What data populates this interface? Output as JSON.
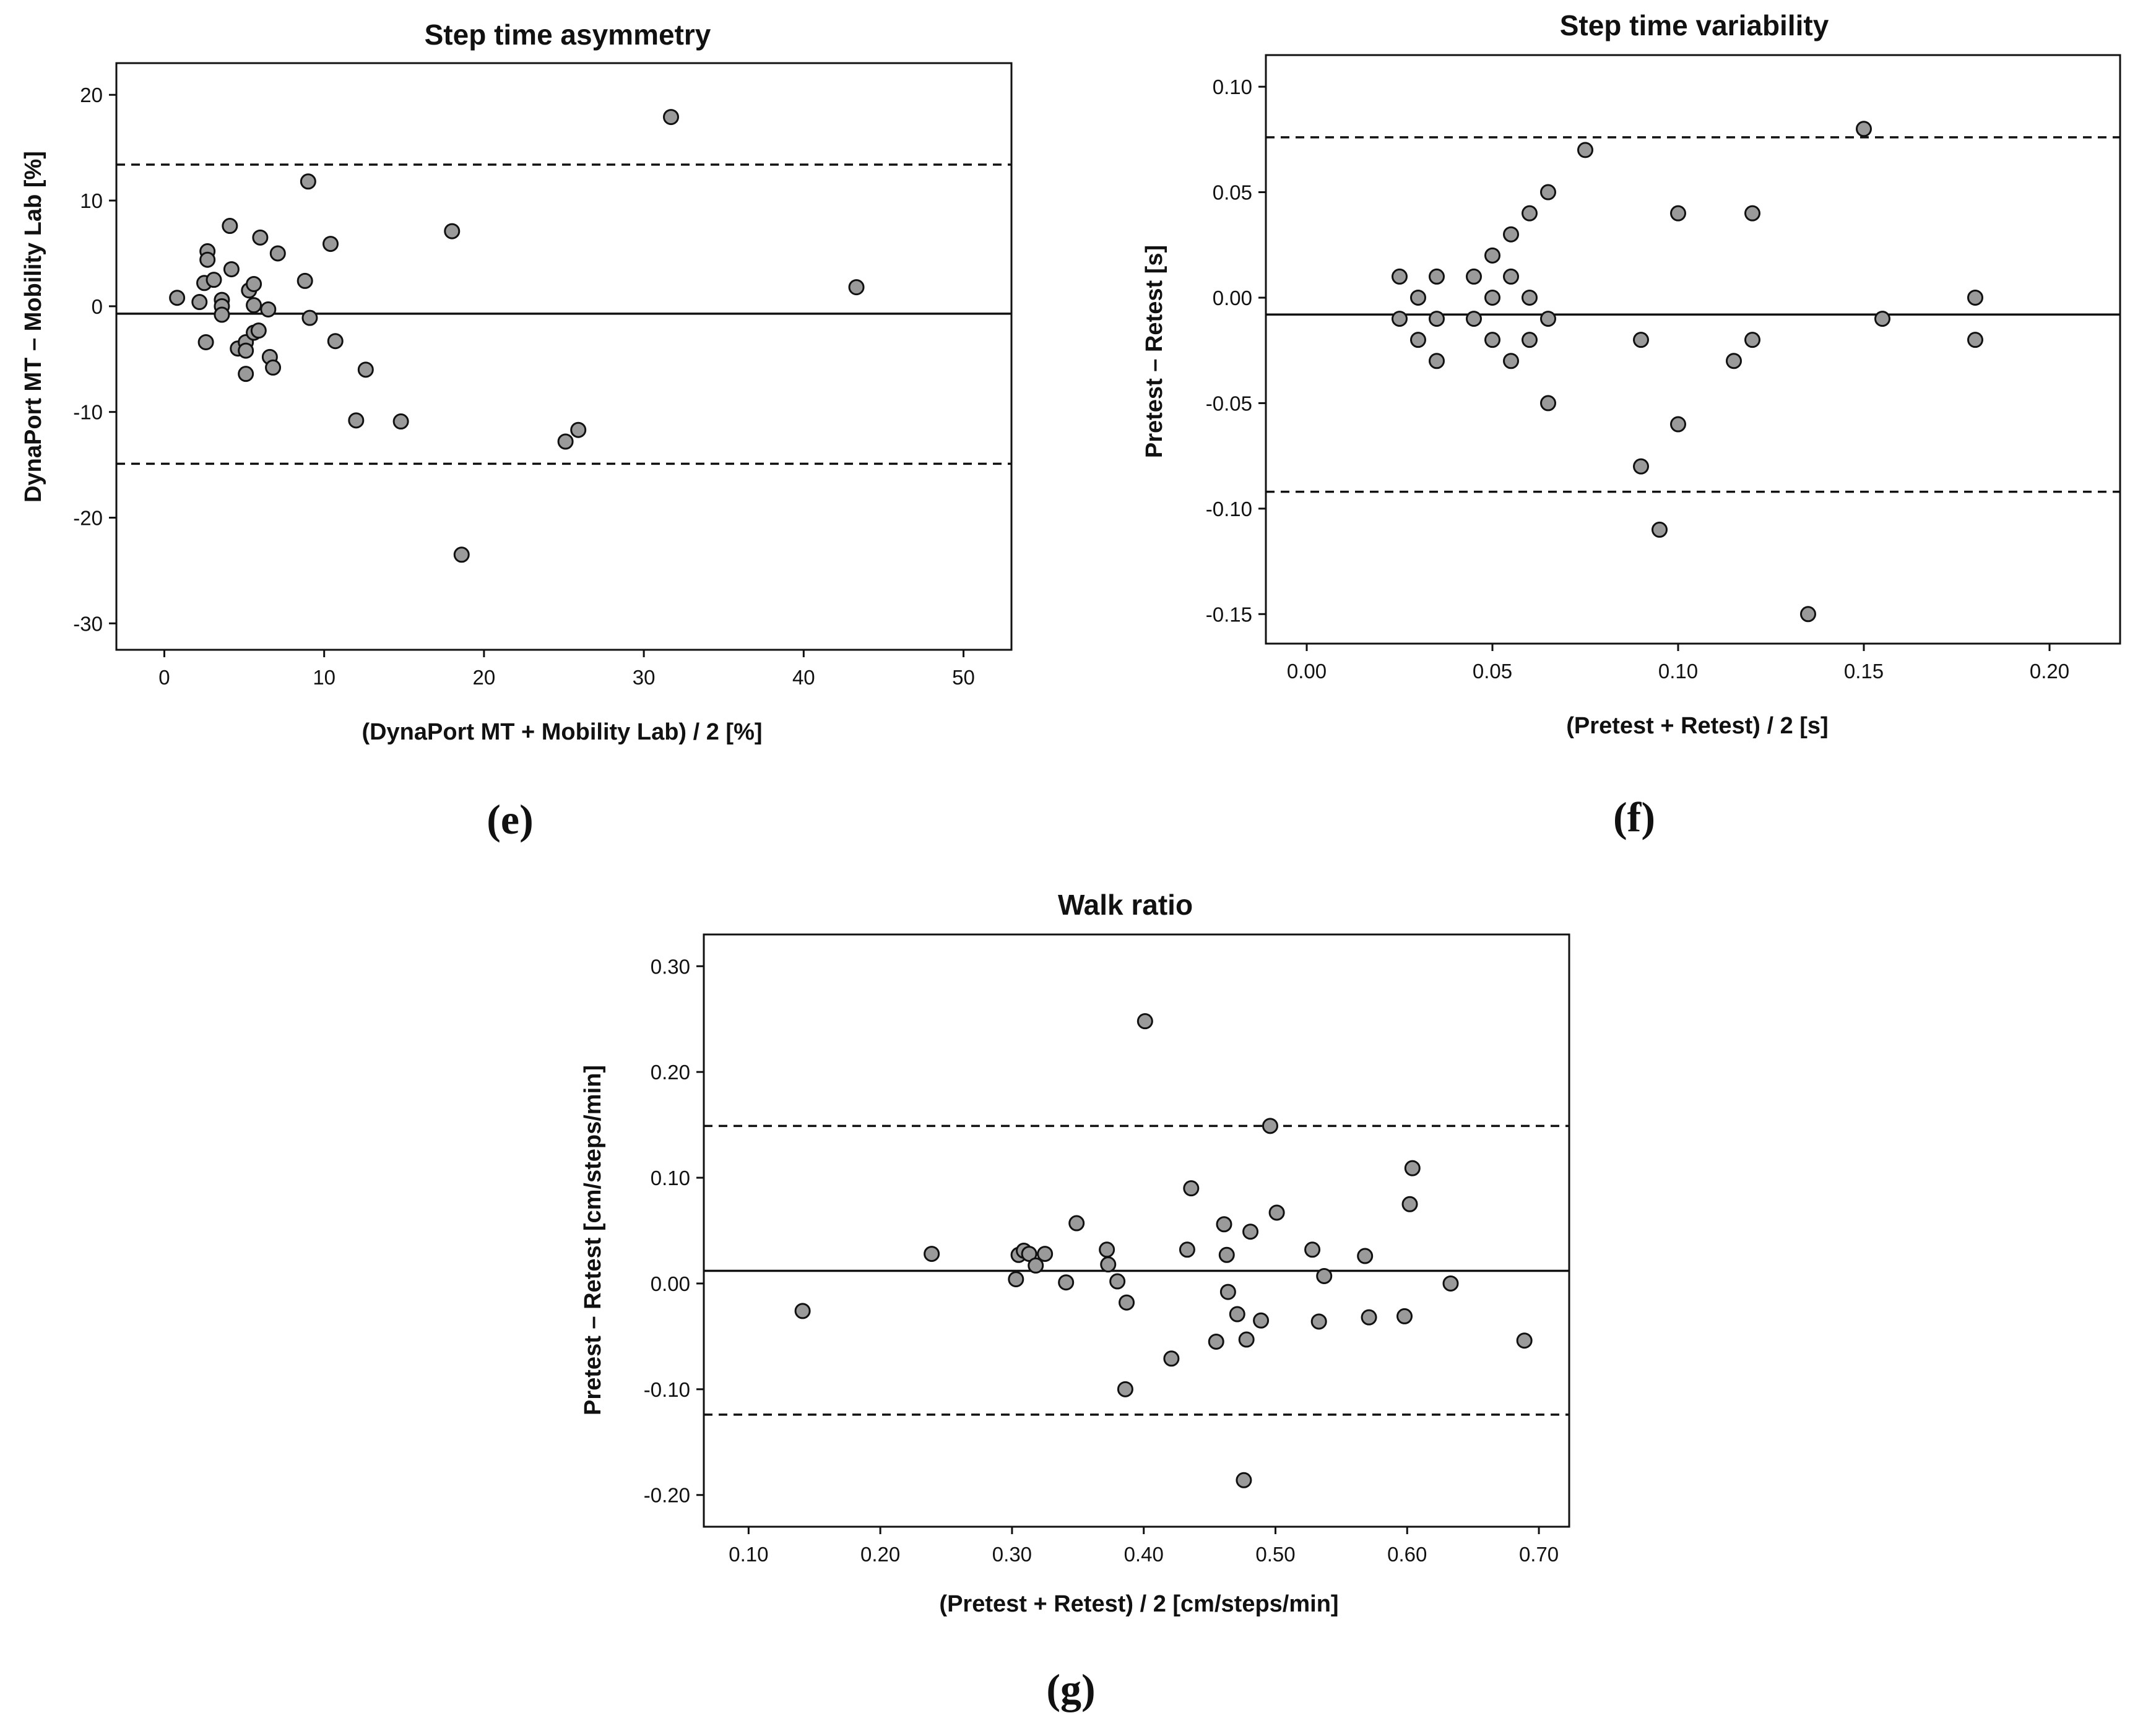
{
  "chart_data": [
    {
      "type": "scatter",
      "id": "e",
      "panel_label": "(e)",
      "title": "Step time asymmetry",
      "xlabel": "(DynaPort MT + Mobility Lab) / 2 [%]",
      "ylabel": "DynaPort MT – Mobility Lab [%]",
      "xlim": [
        -3,
        53
      ],
      "ylim": [
        -32.5,
        23
      ],
      "xticks": [
        0,
        10,
        20,
        30,
        40,
        50
      ],
      "xtick_labels": [
        "0",
        "10",
        "20",
        "30",
        "40",
        "50"
      ],
      "yticks": [
        20,
        10,
        0,
        -10,
        -20,
        -30
      ],
      "ytick_labels": [
        "20",
        "10",
        "0",
        "-10",
        "-20",
        "-30"
      ],
      "mean_difference": -0.7,
      "loa_upper": 13.4,
      "loa_lower": -14.9,
      "points": [
        [
          0.8,
          0.8
        ],
        [
          2.2,
          0.4
        ],
        [
          2.5,
          2.2
        ],
        [
          2.7,
          5.2
        ],
        [
          2.7,
          4.4
        ],
        [
          2.6,
          -3.4
        ],
        [
          3.1,
          2.5
        ],
        [
          3.6,
          0.6
        ],
        [
          3.6,
          0.0
        ],
        [
          3.6,
          -0.8
        ],
        [
          4.1,
          7.6
        ],
        [
          4.2,
          3.5
        ],
        [
          4.6,
          -4.0
        ],
        [
          5.1,
          -3.4
        ],
        [
          5.1,
          -4.2
        ],
        [
          5.1,
          -6.4
        ],
        [
          5.3,
          1.5
        ],
        [
          5.6,
          2.1
        ],
        [
          5.6,
          0.1
        ],
        [
          5.6,
          -2.5
        ],
        [
          5.9,
          -2.3
        ],
        [
          6.0,
          6.5
        ],
        [
          6.5,
          -0.3
        ],
        [
          6.6,
          -4.8
        ],
        [
          6.8,
          -5.8
        ],
        [
          7.1,
          5.0
        ],
        [
          8.8,
          2.4
        ],
        [
          9.0,
          11.8
        ],
        [
          9.1,
          -1.1
        ],
        [
          10.4,
          5.9
        ],
        [
          10.7,
          -3.3
        ],
        [
          12.0,
          -10.8
        ],
        [
          12.6,
          -6.0
        ],
        [
          14.8,
          -10.9
        ],
        [
          18.0,
          7.1
        ],
        [
          18.6,
          -23.5
        ],
        [
          25.1,
          -12.8
        ],
        [
          25.9,
          -11.7
        ],
        [
          31.7,
          17.9
        ],
        [
          43.3,
          1.8
        ]
      ]
    },
    {
      "type": "scatter",
      "id": "f",
      "panel_label": "(f)",
      "title": "Step time variability",
      "xlabel": "(Pretest + Retest) / 2 [s]",
      "ylabel": "Pretest – Retest [s]",
      "xlim": [
        -0.011,
        0.219
      ],
      "ylim": [
        -0.164,
        0.115
      ],
      "xticks": [
        0.0,
        0.05,
        0.1,
        0.15,
        0.2
      ],
      "xtick_labels": [
        "0.00",
        "0.05",
        "0.10",
        "0.15",
        "0.20"
      ],
      "yticks": [
        0.1,
        0.05,
        0.0,
        -0.05,
        -0.1,
        -0.15
      ],
      "ytick_labels": [
        "0.10",
        "0.05",
        "0.00",
        "-0.05",
        "-0.10",
        "-0.15"
      ],
      "mean_difference": -0.008,
      "loa_upper": 0.076,
      "loa_lower": -0.092,
      "points": [
        [
          0.025,
          0.01
        ],
        [
          0.025,
          -0.01
        ],
        [
          0.03,
          0.0
        ],
        [
          0.03,
          -0.02
        ],
        [
          0.035,
          0.01
        ],
        [
          0.035,
          -0.01
        ],
        [
          0.035,
          -0.03
        ],
        [
          0.045,
          0.01
        ],
        [
          0.045,
          -0.01
        ],
        [
          0.05,
          0.02
        ],
        [
          0.05,
          0.0
        ],
        [
          0.05,
          -0.02
        ],
        [
          0.055,
          0.03
        ],
        [
          0.055,
          0.01
        ],
        [
          0.055,
          -0.03
        ],
        [
          0.06,
          0.04
        ],
        [
          0.06,
          0.0
        ],
        [
          0.06,
          -0.02
        ],
        [
          0.065,
          0.05
        ],
        [
          0.065,
          -0.01
        ],
        [
          0.065,
          -0.05
        ],
        [
          0.075,
          0.07
        ],
        [
          0.09,
          -0.02
        ],
        [
          0.09,
          -0.08
        ],
        [
          0.095,
          -0.11
        ],
        [
          0.1,
          0.04
        ],
        [
          0.1,
          -0.06
        ],
        [
          0.115,
          -0.03
        ],
        [
          0.12,
          0.04
        ],
        [
          0.12,
          -0.02
        ],
        [
          0.135,
          -0.15
        ],
        [
          0.15,
          0.08
        ],
        [
          0.155,
          -0.01
        ],
        [
          0.18,
          0.0
        ],
        [
          0.18,
          -0.02
        ]
      ]
    },
    {
      "type": "scatter",
      "id": "g",
      "panel_label": "(g)",
      "title": "Walk ratio",
      "xlabel": "(Pretest + Retest) / 2 [cm/steps/min]",
      "ylabel": "Pretest – Retest [cm/steps/min]",
      "xlim": [
        0.066,
        0.723
      ],
      "ylim": [
        -0.23,
        0.33
      ],
      "xticks": [
        0.1,
        0.2,
        0.3,
        0.4,
        0.5,
        0.6,
        0.7
      ],
      "xtick_labels": [
        "0.10",
        "0.20",
        "0.30",
        "0.40",
        "0.50",
        "0.60",
        "0.70"
      ],
      "yticks": [
        0.3,
        0.2,
        0.1,
        0.0,
        -0.1,
        -0.2
      ],
      "ytick_labels": [
        "0.30",
        "0.20",
        "0.10",
        "0.00",
        "-0.10",
        "-0.20"
      ],
      "mean_difference": 0.012,
      "loa_upper": 0.149,
      "loa_lower": -0.124,
      "points": [
        [
          0.141,
          -0.026
        ],
        [
          0.239,
          0.028
        ],
        [
          0.303,
          0.004
        ],
        [
          0.305,
          0.027
        ],
        [
          0.309,
          0.031
        ],
        [
          0.313,
          0.028
        ],
        [
          0.318,
          0.017
        ],
        [
          0.325,
          0.028
        ],
        [
          0.341,
          0.001
        ],
        [
          0.349,
          0.057
        ],
        [
          0.372,
          0.032
        ],
        [
          0.373,
          0.018
        ],
        [
          0.38,
          0.002
        ],
        [
          0.386,
          -0.1
        ],
        [
          0.387,
          -0.018
        ],
        [
          0.401,
          0.248
        ],
        [
          0.421,
          -0.071
        ],
        [
          0.433,
          0.032
        ],
        [
          0.436,
          0.09
        ],
        [
          0.455,
          -0.055
        ],
        [
          0.461,
          0.056
        ],
        [
          0.463,
          0.027
        ],
        [
          0.464,
          -0.008
        ],
        [
          0.471,
          -0.029
        ],
        [
          0.476,
          -0.186
        ],
        [
          0.478,
          -0.053
        ],
        [
          0.481,
          0.049
        ],
        [
          0.489,
          -0.035
        ],
        [
          0.496,
          0.149
        ],
        [
          0.501,
          0.067
        ],
        [
          0.528,
          0.032
        ],
        [
          0.533,
          -0.036
        ],
        [
          0.537,
          0.007
        ],
        [
          0.568,
          0.026
        ],
        [
          0.571,
          -0.032
        ],
        [
          0.598,
          -0.031
        ],
        [
          0.602,
          0.075
        ],
        [
          0.604,
          0.109
        ],
        [
          0.633,
          0.0
        ],
        [
          0.689,
          -0.054
        ]
      ]
    }
  ]
}
